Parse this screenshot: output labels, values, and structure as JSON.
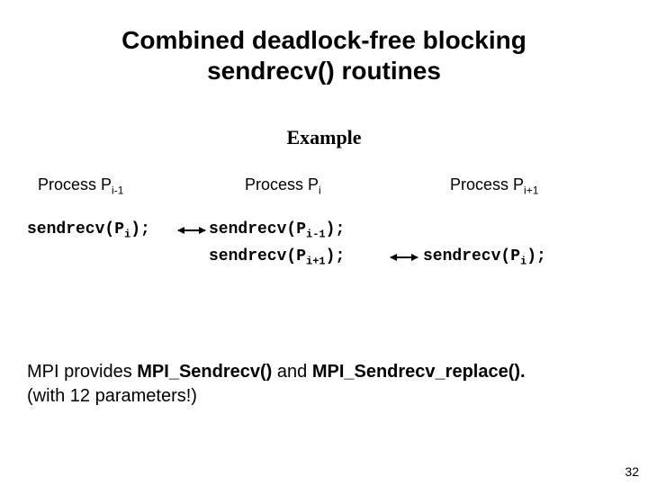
{
  "title_line1": "Combined deadlock-free blocking",
  "title_line2": "sendrecv() routines",
  "example_label": "Example",
  "processes": {
    "left": {
      "prefix": "Process P",
      "sub": "i-1"
    },
    "mid": {
      "prefix": "Process P",
      "sub": "i"
    },
    "right": {
      "prefix": "Process P",
      "sub": "i+1"
    }
  },
  "code": {
    "left_row1": {
      "pre": "sendrecv(P",
      "sub": "i",
      "post": ");"
    },
    "mid_row1": {
      "pre": "sendrecv(P",
      "sub": "i-1",
      "post": ");"
    },
    "mid_row2": {
      "pre": "sendrecv(P",
      "sub": "i+1",
      "post": ");"
    },
    "right_row2": {
      "pre": "sendrecv(P",
      "sub": "i",
      "post": ");"
    }
  },
  "body": {
    "lead": "MPI provides ",
    "fn1": "MPI_Sendrecv()",
    "mid": " and ",
    "fn2": "MPI_Sendrecv_replace().",
    "line2": "(with 12 parameters!)"
  },
  "pagenum": "32"
}
